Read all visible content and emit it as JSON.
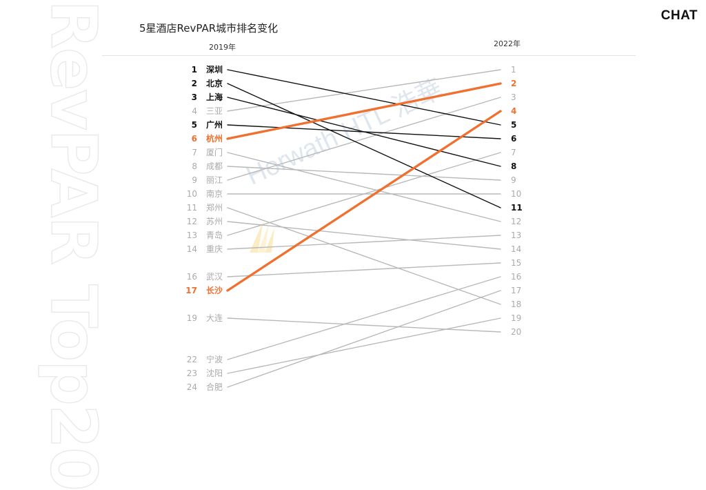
{
  "page": {
    "brand": "CHAT",
    "side_watermark": "RevPAR Top20",
    "logo_watermark": "Horwath HTL 浩華"
  },
  "colors": {
    "highlight": "#f07030",
    "dark": "#111111",
    "muted": "#b8b8b8",
    "muted_text": "#aaaaaa"
  },
  "chart_data": {
    "type": "slope",
    "title": "5星酒店RevPAR城市排名变化",
    "left_label": "2019年",
    "right_label": "2022年",
    "items": [
      {
        "city": "深圳",
        "rank_2019": 1,
        "rank_2022": 5,
        "style": "dark"
      },
      {
        "city": "北京",
        "rank_2019": 2,
        "rank_2022": 11,
        "style": "dark"
      },
      {
        "city": "上海",
        "rank_2019": 3,
        "rank_2022": 8,
        "style": "dark"
      },
      {
        "city": "三亚",
        "rank_2019": 4,
        "rank_2022": 1,
        "style": "muted"
      },
      {
        "city": "广州",
        "rank_2019": 5,
        "rank_2022": 6,
        "style": "dark"
      },
      {
        "city": "杭州",
        "rank_2019": 6,
        "rank_2022": 2,
        "style": "highlight"
      },
      {
        "city": "厦门",
        "rank_2019": 7,
        "rank_2022": 12,
        "style": "muted"
      },
      {
        "city": "成都",
        "rank_2019": 8,
        "rank_2022": 9,
        "style": "muted"
      },
      {
        "city": "丽江",
        "rank_2019": 9,
        "rank_2022": 3,
        "style": "muted"
      },
      {
        "city": "南京",
        "rank_2019": 10,
        "rank_2022": 10,
        "style": "muted"
      },
      {
        "city": "郑州",
        "rank_2019": 11,
        "rank_2022": 18,
        "style": "muted"
      },
      {
        "city": "苏州",
        "rank_2019": 12,
        "rank_2022": 14,
        "style": "muted"
      },
      {
        "city": "青岛",
        "rank_2019": 13,
        "rank_2022": 7,
        "style": "muted"
      },
      {
        "city": "重庆",
        "rank_2019": 14,
        "rank_2022": 13,
        "style": "muted"
      },
      {
        "city": "武汉",
        "rank_2019": 16,
        "rank_2022": 15,
        "style": "muted"
      },
      {
        "city": "长沙",
        "rank_2019": 17,
        "rank_2022": 4,
        "style": "highlight"
      },
      {
        "city": "大连",
        "rank_2019": 19,
        "rank_2022": 20,
        "style": "muted"
      },
      {
        "city": "宁波",
        "rank_2019": 22,
        "rank_2022": 16,
        "style": "muted"
      },
      {
        "city": "沈阳",
        "rank_2019": 23,
        "rank_2022": 19,
        "style": "muted"
      },
      {
        "city": "合肥",
        "rank_2019": 24,
        "rank_2022": 17,
        "style": "muted"
      }
    ],
    "right_ranks": [
      1,
      2,
      3,
      4,
      5,
      6,
      7,
      8,
      9,
      10,
      11,
      12,
      13,
      14,
      15,
      16,
      17,
      18,
      19,
      20
    ]
  }
}
